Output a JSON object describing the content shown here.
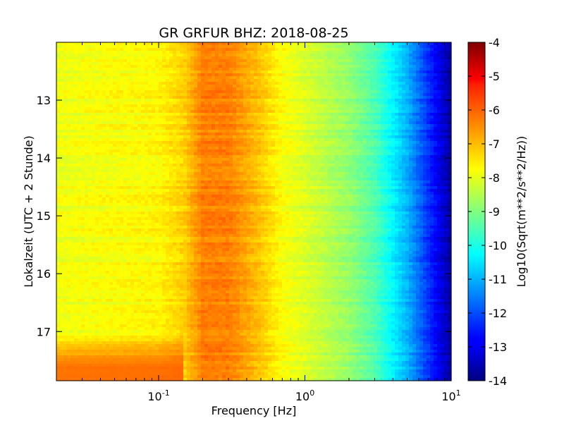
{
  "chart_data": {
    "type": "heatmap",
    "title": "GR GRFUR BHZ: 2018-08-25",
    "xlabel": "Frequency [Hz]",
    "ylabel": "Lokalzeit (UTC + 2 Stunde)",
    "x_scale": "log",
    "xlim": [
      0.02,
      10
    ],
    "ylim": [
      12.0,
      17.85
    ],
    "y_inverted": true,
    "x_ticks": [
      {
        "value": 0.1,
        "base": "10",
        "exp": "-1"
      },
      {
        "value": 1,
        "base": "10",
        "exp": "0"
      },
      {
        "value": 10,
        "base": "10",
        "exp": "1"
      }
    ],
    "y_ticks": [
      {
        "value": 13,
        "label": "13"
      },
      {
        "value": 14,
        "label": "14"
      },
      {
        "value": 15,
        "label": "15"
      },
      {
        "value": 16,
        "label": "16"
      },
      {
        "value": 17,
        "label": "17"
      }
    ],
    "colorbar": {
      "label": "Log10(Sqrt(m**2/s**2/Hz))",
      "range": [
        -14,
        -4
      ],
      "colormap": "jet",
      "ticks": [
        "-4",
        "-5",
        "-6",
        "-7",
        "-8",
        "-9",
        "-10",
        "-11",
        "-12",
        "-13",
        "-14"
      ]
    },
    "spectrum_profile": [
      {
        "freq": 0.02,
        "value": -7.9
      },
      {
        "freq": 0.1,
        "value": -7.7
      },
      {
        "freq": 0.15,
        "value": -7.3
      },
      {
        "freq": 0.2,
        "value": -6.5
      },
      {
        "freq": 0.3,
        "value": -6.5
      },
      {
        "freq": 0.5,
        "value": -7.2
      },
      {
        "freq": 0.7,
        "value": -7.8
      },
      {
        "freq": 1.0,
        "value": -8.1
      },
      {
        "freq": 2.0,
        "value": -8.8
      },
      {
        "freq": 3.0,
        "value": -9.5
      },
      {
        "freq": 5.0,
        "value": -11.0
      },
      {
        "freq": 7.0,
        "value": -12.3
      },
      {
        "freq": 10.0,
        "value": -13.7
      }
    ],
    "event_start_time": 17.0,
    "event_peak_value": -6.0
  }
}
